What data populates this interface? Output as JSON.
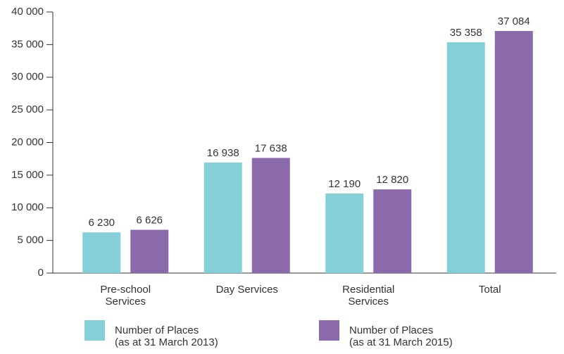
{
  "chart_data": {
    "type": "bar",
    "categories": [
      "Pre-school\nServices",
      "Day Services",
      "Residential\nServices",
      "Total"
    ],
    "series": [
      {
        "name": "Number of Places\n(as at 31 March 2013)",
        "color": "#85cfd9",
        "values": [
          6230,
          16938,
          12190,
          35358
        ],
        "value_labels": [
          "6 230",
          "16 938",
          "12 190",
          "35 358"
        ]
      },
      {
        "name": "Number of Places\n(as at 31 March 2015)",
        "color": "#8a6aab",
        "values": [
          6626,
          17638,
          12820,
          37084
        ],
        "value_labels": [
          "6 626",
          "17 638",
          "12 820",
          "37 084"
        ]
      }
    ],
    "ylim": [
      0,
      40000
    ],
    "yticks": [
      {
        "value": 0,
        "label": "0"
      },
      {
        "value": 5000,
        "label": "5 000"
      },
      {
        "value": 10000,
        "label": "10 000"
      },
      {
        "value": 15000,
        "label": "15 000"
      },
      {
        "value": 20000,
        "label": "20 000"
      },
      {
        "value": 25000,
        "label": "25 000"
      },
      {
        "value": 30000,
        "label": "30 000"
      },
      {
        "value": 35000,
        "label": "35 000"
      },
      {
        "value": 40000,
        "label": "40 000"
      }
    ],
    "legend": "bottom",
    "grid": false
  }
}
